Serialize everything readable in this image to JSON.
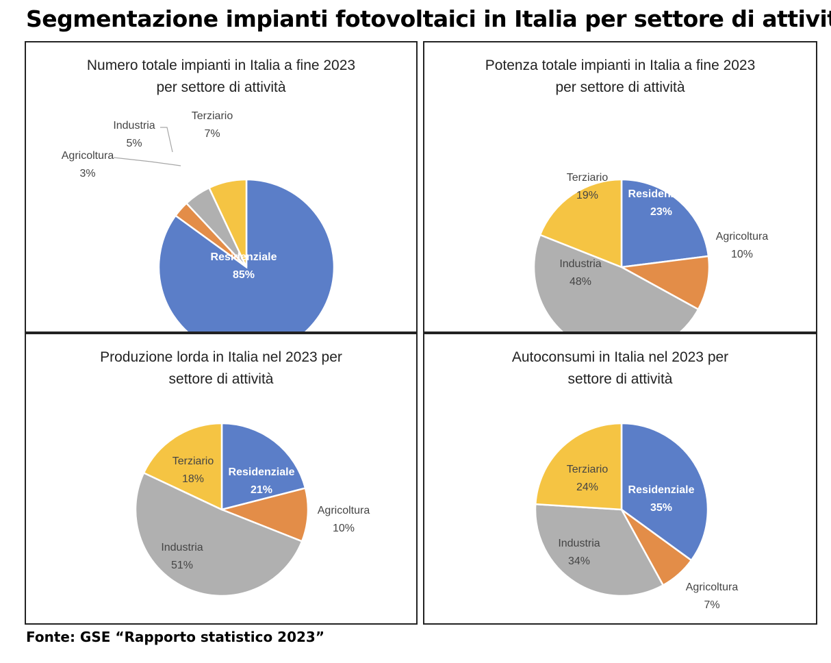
{
  "page": {
    "title": "Segmentazione impianti fotovoltaici in Italia per settore di attività",
    "source": "Fonte: GSE “Rapporto statistico 2023”"
  },
  "colors": {
    "Residenziale": "#5b7ec8",
    "Agricoltura": "#e38d48",
    "Industria": "#b0b0b0",
    "Terziario": "#f5c443"
  },
  "chart_data": [
    {
      "type": "pie",
      "title": [
        "Numero totale impianti in Italia a fine 2023",
        "per settore di attività"
      ],
      "categories": [
        "Residenziale",
        "Agricoltura",
        "Industria",
        "Terziario"
      ],
      "values": [
        85,
        3,
        5,
        7
      ],
      "labels": [
        "85%",
        "3%",
        "5%",
        "7%"
      ]
    },
    {
      "type": "pie",
      "title": [
        "Potenza totale impianti in Italia a fine 2023",
        "per settore di attività"
      ],
      "categories": [
        "Residenziale",
        "Agricoltura",
        "Industria",
        "Terziario"
      ],
      "values": [
        23,
        10,
        48,
        19
      ],
      "labels": [
        "23%",
        "10%",
        "48%",
        "19%"
      ]
    },
    {
      "type": "pie",
      "title": [
        "Produzione lorda in Italia nel 2023 per",
        "settore di attività"
      ],
      "categories": [
        "Residenziale",
        "Agricoltura",
        "Industria",
        "Terziario"
      ],
      "values": [
        21,
        10,
        51,
        18
      ],
      "labels": [
        "21%",
        "10%",
        "51%",
        "18%"
      ]
    },
    {
      "type": "pie",
      "title": [
        "Autoconsumi in Italia nel 2023 per",
        "settore di attività"
      ],
      "categories": [
        "Residenziale",
        "Agricoltura",
        "Industria",
        "Terziario"
      ],
      "values": [
        35,
        7,
        34,
        24
      ],
      "labels": [
        "35%",
        "7%",
        "34%",
        "24%"
      ]
    }
  ]
}
